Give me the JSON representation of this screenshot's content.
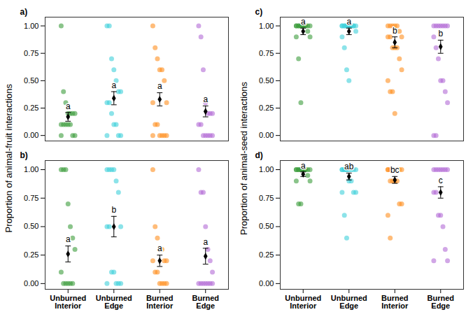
{
  "chart_data": [
    {
      "type": "scatter",
      "title": "a)",
      "ylabel": "Proportion of animal-fruit interactions",
      "categories": [
        "Unburned Interior",
        "Unburned Edge",
        "Burned Interior",
        "Burned Edge"
      ],
      "colors": [
        "#3c9c3c",
        "#3fd0db",
        "#ff8f1f",
        "#b36ad6"
      ],
      "points": [
        [
          1.0,
          0.4,
          0.3,
          0.2,
          0.2,
          0.2,
          0.2,
          0.1,
          0.1,
          0.1,
          0.1,
          0.1,
          0,
          0,
          0
        ],
        [
          1.0,
          1.0,
          0.7,
          0.6,
          0.5,
          0.4,
          0.4,
          0.3,
          0.3,
          0.2,
          0.1,
          0.1,
          0,
          0,
          0
        ],
        [
          1.0,
          0.8,
          0.7,
          0.6,
          0.6,
          0.5,
          0.3,
          0.3,
          0.1,
          0.1,
          0,
          0,
          0,
          0,
          0
        ],
        [
          1.0,
          0.9,
          0.6,
          0.3,
          0.2,
          0.2,
          0.2,
          0.1,
          0.1,
          0,
          0,
          0,
          0,
          0
        ]
      ],
      "means": [
        0.17,
        0.34,
        0.33,
        0.22
      ],
      "errors": [
        0.04,
        0.06,
        0.06,
        0.05
      ],
      "group_letters": [
        "a",
        "a",
        "a",
        "a"
      ],
      "ylim": [
        -0.05,
        1.08
      ],
      "yticks": [
        {
          "value": 0,
          "label": "0.00"
        },
        {
          "value": 0.25,
          "label": "0.25"
        },
        {
          "value": 0.5,
          "label": "0.50"
        },
        {
          "value": 0.75,
          "label": "0.75"
        },
        {
          "value": 1,
          "label": "1.00"
        }
      ],
      "tick_labels": "y",
      "grid": false
    },
    {
      "type": "scatter",
      "title": "b)",
      "categories": [
        "Unburned Interior",
        "Unburned Edge",
        "Burned Interior",
        "Burned Edge"
      ],
      "colors": [
        "#3c9c3c",
        "#3fd0db",
        "#ff8f1f",
        "#b36ad6"
      ],
      "points": [
        [
          1.0,
          1.0,
          1.0,
          0.7,
          0.5,
          0.4,
          0.3,
          0.1,
          0,
          0,
          0,
          0,
          0
        ],
        [
          1.0,
          1.0,
          1.0,
          1.0,
          0.9,
          0.8,
          0.5,
          0.5,
          0.5,
          0.1,
          0.1,
          0,
          0,
          0,
          0
        ],
        [
          1.0,
          0.5,
          0.4,
          0.3,
          0.3,
          0.2,
          0.2,
          0.2,
          0.1,
          0.1,
          0,
          0,
          0,
          0
        ],
        [
          1.0,
          0.8,
          0.8,
          0.5,
          0.3,
          0.2,
          0.1,
          0,
          0,
          0,
          0,
          0,
          0,
          0
        ]
      ],
      "means": [
        0.26,
        0.5,
        0.2,
        0.24
      ],
      "errors": [
        0.07,
        0.09,
        0.05,
        0.07
      ],
      "group_letters": [
        "a",
        "b",
        "a",
        "a"
      ],
      "ylim": [
        -0.05,
        1.08
      ],
      "yticks": [
        {
          "value": 0,
          "label": "0.00"
        },
        {
          "value": 0.25,
          "label": "0.25"
        },
        {
          "value": 0.5,
          "label": "0.50"
        },
        {
          "value": 0.75,
          "label": "0.75"
        },
        {
          "value": 1,
          "label": "1.00"
        }
      ],
      "grid": false
    },
    {
      "type": "scatter",
      "title": "c)",
      "ylabel": "Proportion of animal-seed interactions",
      "categories": [
        "Unburned Interior",
        "Unburned Edge",
        "Burned Interior",
        "Burned Edge"
      ],
      "colors": [
        "#3c9c3c",
        "#3fd0db",
        "#ff8f1f",
        "#b36ad6"
      ],
      "points": [
        [
          1,
          1,
          1,
          1,
          1,
          1,
          1,
          1,
          1,
          1,
          1,
          1,
          0.95,
          0.9,
          0.9,
          0.7,
          0.3
        ],
        [
          1,
          1,
          1,
          1,
          1,
          1,
          1,
          1,
          1,
          1,
          1,
          1,
          1,
          0.95,
          0.9,
          0.8,
          0.6,
          0.5
        ],
        [
          1,
          1,
          1,
          1,
          1,
          0.95,
          0.9,
          0.9,
          0.9,
          0.8,
          0.8,
          0.8,
          0.7,
          0.6,
          0.5,
          0.4,
          0.4,
          0.2
        ],
        [
          1,
          1,
          1,
          1,
          1,
          1,
          1,
          0.9,
          0.8,
          0.7,
          0.5,
          0.5,
          0.4,
          0.3,
          0,
          0
        ]
      ],
      "means": [
        0.95,
        0.95,
        0.85,
        0.81
      ],
      "errors": [
        0.03,
        0.03,
        0.05,
        0.06
      ],
      "group_letters": [
        "a",
        "a",
        "b",
        "b"
      ],
      "ylim": [
        -0.05,
        1.08
      ],
      "yticks": [
        {
          "value": 0,
          "label": "0.00"
        },
        {
          "value": 0.25,
          "label": "0.25"
        },
        {
          "value": 0.5,
          "label": "0.50"
        },
        {
          "value": 0.75,
          "label": "0.75"
        },
        {
          "value": 1,
          "label": "1.00"
        }
      ],
      "tick_labels": "y",
      "grid": false
    },
    {
      "type": "scatter",
      "title": "d)",
      "categories": [
        "Unburned Interior",
        "Unburned Edge",
        "Burned Interior",
        "Burned Edge"
      ],
      "colors": [
        "#3c9c3c",
        "#3fd0db",
        "#ff8f1f",
        "#b36ad6"
      ],
      "points": [
        [
          1,
          1,
          1,
          1,
          1,
          1,
          1,
          1,
          1,
          1,
          1,
          1,
          0.95,
          0.9,
          0.9,
          0.7,
          0.7
        ],
        [
          1,
          1,
          1,
          1,
          1,
          1,
          1,
          1,
          1,
          1,
          0.9,
          0.9,
          0.8,
          0.8,
          0.8,
          0.6,
          0.4
        ],
        [
          1,
          1,
          1,
          1,
          1,
          1,
          1,
          1,
          0.9,
          0.9,
          0.9,
          0.9,
          0.7,
          0.7,
          0.6,
          0.4
        ],
        [
          1,
          1,
          1,
          1,
          1,
          1,
          1,
          0.8,
          0.8,
          0.6,
          0.6,
          0.5,
          0.3,
          0.2,
          0.2
        ]
      ],
      "means": [
        0.96,
        0.94,
        0.91,
        0.8
      ],
      "errors": [
        0.02,
        0.03,
        0.03,
        0.05
      ],
      "group_letters": [
        "a",
        "ab",
        "bc",
        "c"
      ],
      "ylim": [
        -0.05,
        1.08
      ],
      "yticks": [
        {
          "value": 0,
          "label": "0.00"
        },
        {
          "value": 0.25,
          "label": "0.25"
        },
        {
          "value": 0.5,
          "label": "0.50"
        },
        {
          "value": 0.75,
          "label": "0.75"
        },
        {
          "value": 1,
          "label": "1.00"
        }
      ],
      "grid": false
    }
  ]
}
